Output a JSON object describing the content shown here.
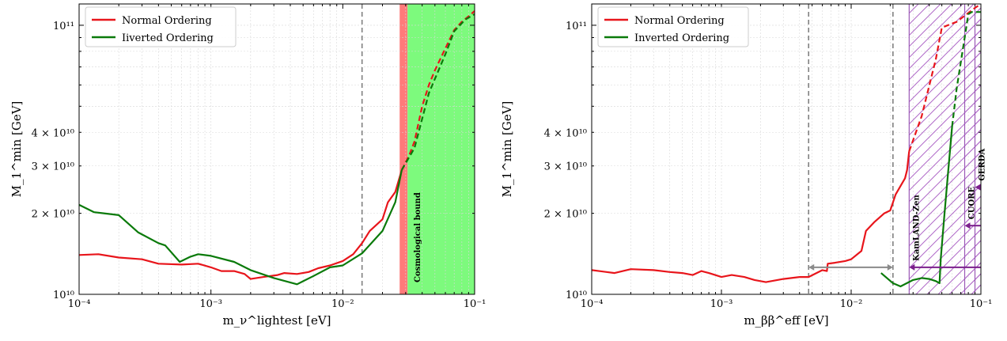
{
  "chart_data": [
    {
      "type": "line",
      "xscale": "log",
      "yscale": "log",
      "xlim": [
        0.0001,
        0.1
      ],
      "ylim": [
        10000000000,
        120000000000
      ],
      "xlabel": "m_ν^lightest [eV]",
      "ylabel": "M_1^min [GeV]",
      "x_ticks": [
        {
          "value": 0.0001,
          "label": "10⁻⁴"
        },
        {
          "value": 0.001,
          "label": "10⁻³"
        },
        {
          "value": 0.01,
          "label": "10⁻²"
        },
        {
          "value": 0.1,
          "label": "10⁻¹"
        }
      ],
      "y_ticks": [
        {
          "value": 10000000000,
          "label": "10¹⁰"
        },
        {
          "value": 20000000000,
          "label": "2 × 10¹⁰"
        },
        {
          "value": 30000000000,
          "label": "3 × 10¹⁰"
        },
        {
          "value": 40000000000,
          "label": "4 × 10¹⁰"
        },
        {
          "value": 100000000000,
          "label": "10¹¹"
        }
      ],
      "grid": true,
      "legend_position": "top-left",
      "series": [
        {
          "name": "Normal Ordering",
          "color": "#e8151b",
          "solid": [
            [
              0.0001,
              14000000000
            ],
            [
              0.00014,
              14100000000
            ],
            [
              0.0002,
              13700000000
            ],
            [
              0.0003,
              13500000000
            ],
            [
              0.0004,
              13000000000
            ],
            [
              0.0006,
              12900000000
            ],
            [
              0.0008,
              13000000000
            ],
            [
              0.001,
              12600000000
            ],
            [
              0.0012,
              12200000000
            ],
            [
              0.0015,
              12200000000
            ],
            [
              0.0018,
              11900000000
            ],
            [
              0.002,
              11400000000
            ],
            [
              0.0025,
              11600000000
            ],
            [
              0.0032,
              11800000000
            ],
            [
              0.0036,
              12000000000
            ],
            [
              0.0045,
              11900000000
            ],
            [
              0.0055,
              12100000000
            ],
            [
              0.0065,
              12500000000
            ],
            [
              0.008,
              12800000000
            ],
            [
              0.01,
              13300000000
            ],
            [
              0.012,
              14100000000
            ],
            [
              0.014,
              15500000000
            ],
            [
              0.016,
              17200000000
            ],
            [
              0.02,
              19000000000
            ],
            [
              0.022,
              22000000000
            ],
            [
              0.025,
              24000000000
            ],
            [
              0.028,
              29000000000
            ]
          ],
          "dashed": [
            [
              0.028,
              29000000000
            ],
            [
              0.032,
              33000000000
            ],
            [
              0.035,
              37000000000
            ],
            [
              0.04,
              50000000000
            ],
            [
              0.045,
              60000000000
            ],
            [
              0.05,
              68000000000
            ],
            [
              0.06,
              82000000000
            ],
            [
              0.07,
              96000000000
            ],
            [
              0.08,
              103000000000
            ],
            [
              0.09,
              108000000000
            ],
            [
              0.1,
              113000000000
            ]
          ]
        },
        {
          "name": "Iiverted Ordering",
          "color": "#0a7a0a",
          "solid": [
            [
              0.0001,
              21500000000
            ],
            [
              0.00013,
              20200000000
            ],
            [
              0.0002,
              19700000000
            ],
            [
              0.00028,
              17000000000
            ],
            [
              0.0004,
              15500000000
            ],
            [
              0.00045,
              15200000000
            ],
            [
              0.00058,
              13200000000
            ],
            [
              0.0007,
              13800000000
            ],
            [
              0.0008,
              14100000000
            ],
            [
              0.001,
              13900000000
            ],
            [
              0.0015,
              13200000000
            ],
            [
              0.002,
              12300000000
            ],
            [
              0.003,
              11500000000
            ],
            [
              0.0045,
              10900000000
            ],
            [
              0.006,
              11700000000
            ],
            [
              0.008,
              12600000000
            ],
            [
              0.01,
              12800000000
            ],
            [
              0.014,
              14200000000
            ],
            [
              0.02,
              17200000000
            ],
            [
              0.025,
              22000000000
            ],
            [
              0.028,
              29000000000
            ]
          ],
          "dashed": [
            [
              0.028,
              29000000000
            ],
            [
              0.035,
              35000000000
            ],
            [
              0.045,
              56000000000
            ],
            [
              0.06,
              78000000000
            ],
            [
              0.07,
              95000000000
            ],
            [
              0.085,
              105000000000
            ],
            [
              0.1,
              110000000000
            ]
          ]
        }
      ],
      "vlines": [
        {
          "x": 0.014,
          "style": "dashed",
          "color": "#808080"
        }
      ],
      "bands": [
        {
          "x0": 0.027,
          "x1": 0.031,
          "color": "#ff7a7a"
        },
        {
          "x0": 0.031,
          "x1": 0.1,
          "color": "#7dfa7d",
          "label": "Cosmological bound"
        }
      ]
    },
    {
      "type": "line",
      "xscale": "log",
      "yscale": "log",
      "xlim": [
        0.0001,
        0.1
      ],
      "ylim": [
        10000000000,
        120000000000
      ],
      "xlabel": "m_ββ^eff [eV]",
      "ylabel": "M_1^min [GeV]",
      "x_ticks": [
        {
          "value": 0.0001,
          "label": "10⁻⁴"
        },
        {
          "value": 0.001,
          "label": "10⁻³"
        },
        {
          "value": 0.01,
          "label": "10⁻²"
        },
        {
          "value": 0.1,
          "label": "10⁻¹"
        }
      ],
      "y_ticks": [
        {
          "value": 10000000000,
          "label": "10¹⁰"
        },
        {
          "value": 20000000000,
          "label": "2 × 10¹⁰"
        },
        {
          "value": 30000000000,
          "label": "3 × 10¹⁰"
        },
        {
          "value": 40000000000,
          "label": "4 × 10¹⁰"
        },
        {
          "value": 100000000000,
          "label": "10¹¹"
        }
      ],
      "grid": true,
      "legend_position": "top-left",
      "series": [
        {
          "name": "Normal Ordering",
          "color": "#e8151b",
          "solid": [
            [
              0.0001,
              12300000000
            ],
            [
              0.00015,
              12000000000
            ],
            [
              0.0002,
              12400000000
            ],
            [
              0.0003,
              12300000000
            ],
            [
              0.0004,
              12100000000
            ],
            [
              0.0005,
              12000000000
            ],
            [
              0.0006,
              11800000000
            ],
            [
              0.0007,
              12200000000
            ],
            [
              0.0008,
              12000000000
            ],
            [
              0.001,
              11600000000
            ],
            [
              0.0012,
              11800000000
            ],
            [
              0.0015,
              11600000000
            ],
            [
              0.0018,
              11300000000
            ],
            [
              0.0022,
              11100000000
            ],
            [
              0.003,
              11400000000
            ],
            [
              0.004,
              11600000000
            ],
            [
              0.0047,
              11600000000
            ],
            [
              0.006,
              12300000000
            ],
            [
              0.0065,
              12200000000
            ],
            [
              0.0066,
              13000000000
            ],
            [
              0.0075,
              13100000000
            ],
            [
              0.009,
              13300000000
            ],
            [
              0.01,
              13500000000
            ],
            [
              0.012,
              14500000000
            ],
            [
              0.013,
              17200000000
            ],
            [
              0.015,
              18500000000
            ],
            [
              0.018,
              20000000000
            ],
            [
              0.02,
              20500000000
            ],
            [
              0.022,
              23500000000
            ],
            [
              0.026,
              27000000000
            ],
            [
              0.027,
              29000000000
            ],
            [
              0.028,
              34000000000
            ]
          ],
          "dashed": [
            [
              0.028,
              34000000000
            ],
            [
              0.035,
              46000000000
            ],
            [
              0.045,
              75000000000
            ],
            [
              0.05,
              98000000000
            ],
            [
              0.065,
              103000000000
            ],
            [
              0.09,
              116000000000
            ],
            [
              0.1,
              120000000000
            ]
          ]
        },
        {
          "name": "Inverted Ordering",
          "color": "#0a7a0a",
          "solid": [
            [
              0.017,
              12000000000
            ],
            [
              0.021,
              11000000000
            ],
            [
              0.024,
              10700000000
            ],
            [
              0.03,
              11300000000
            ],
            [
              0.035,
              11500000000
            ],
            [
              0.04,
              11400000000
            ],
            [
              0.045,
              11200000000
            ],
            [
              0.048,
              11000000000
            ],
            [
              0.049,
              13500000000
            ],
            [
              0.052,
              19000000000
            ],
            [
              0.055,
              26000000000
            ],
            [
              0.06,
              42000000000
            ]
          ],
          "dashed": [
            [
              0.06,
              42000000000
            ],
            [
              0.065,
              58000000000
            ],
            [
              0.075,
              90000000000
            ],
            [
              0.08,
              110000000000
            ],
            [
              0.085,
              112000000000
            ],
            [
              0.1,
              112000000000
            ]
          ]
        }
      ],
      "vlines": [
        {
          "x": 0.0047,
          "style": "dashed",
          "color": "#808080"
        },
        {
          "x": 0.021,
          "style": "dashed",
          "color": "#808080"
        }
      ],
      "hatched_regions": [
        {
          "x0": 0.028,
          "x1": 0.1,
          "label": "KamLAND-Zen",
          "arrow_y": 12600000000
        },
        {
          "x0": 0.075,
          "x1": 0.1,
          "label": "CUORE",
          "arrow_y": 18000000000
        },
        {
          "x0": 0.09,
          "x1": 0.1,
          "label": "GERDA",
          "arrow_y": 25000000000
        }
      ],
      "gray_arrow": {
        "x0": 0.0047,
        "x1": 0.021,
        "y": 12600000000
      }
    }
  ]
}
